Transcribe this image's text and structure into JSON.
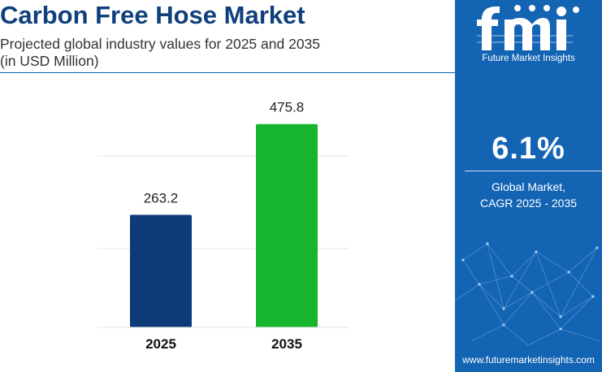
{
  "header": {
    "title": "Carbon Free Hose Market",
    "subtitle": "Projected global industry values for 2025 and 2035",
    "units": "(in USD Million)"
  },
  "chart_data": {
    "type": "bar",
    "categories": [
      "2025",
      "2035"
    ],
    "values": [
      263.2,
      475.8
    ],
    "value_labels": [
      "263.2",
      "475.8"
    ],
    "bar_colors": [
      "#0d3a78",
      "#17b52e"
    ],
    "title": "Carbon Free Hose Market",
    "xlabel": "",
    "ylabel": "",
    "ylim": [
      0,
      500
    ],
    "grid": true,
    "legend": "none"
  },
  "sidebar": {
    "brand": "fmi",
    "brand_subtitle": "Future Market Insights",
    "cagr_value": "6.1%",
    "cagr_label_line1": "Global Market,",
    "cagr_label_line2": "CAGR 2025 - 2035",
    "website": "www.futuremarketinsights.com",
    "background_color": "#1464b4"
  }
}
